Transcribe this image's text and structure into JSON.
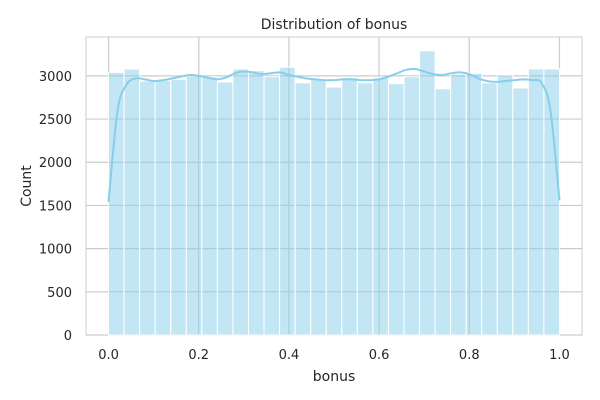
{
  "chart_data": {
    "type": "histogram",
    "title": "Distribution of bonus",
    "xlabel": "bonus",
    "ylabel": "Count",
    "xlim": [
      -0.05,
      1.05
    ],
    "ylim": [
      0,
      3450
    ],
    "xticks": [
      0.0,
      0.2,
      0.4,
      0.6,
      0.8,
      1.0
    ],
    "xtick_labels": [
      "0.0",
      "0.2",
      "0.4",
      "0.6",
      "0.8",
      "1.0"
    ],
    "yticks": [
      0,
      500,
      1000,
      1500,
      2000,
      2500,
      3000
    ],
    "ytick_labels": [
      "0",
      "500",
      "1000",
      "1500",
      "2000",
      "2500",
      "3000"
    ],
    "grid": true,
    "bar_color": "#87ceeb",
    "line_color": "#87ceeb",
    "bins": {
      "start": 0.0,
      "end": 1.0,
      "counts": [
        3040,
        3080,
        2940,
        2950,
        2960,
        3000,
        2990,
        2930,
        3080,
        3060,
        2990,
        3100,
        2920,
        2960,
        2870,
        2980,
        2920,
        2980,
        2910,
        2990,
        3290,
        2850,
        3020,
        3030,
        2920,
        3010,
        2860,
        3080,
        3080
      ]
    },
    "kde": {
      "x": [
        0.0,
        0.02,
        0.04,
        0.06,
        0.08,
        0.1,
        0.12,
        0.14,
        0.16,
        0.18,
        0.2,
        0.22,
        0.24,
        0.26,
        0.28,
        0.3,
        0.32,
        0.34,
        0.36,
        0.38,
        0.4,
        0.42,
        0.44,
        0.46,
        0.48,
        0.5,
        0.52,
        0.54,
        0.56,
        0.58,
        0.6,
        0.62,
        0.64,
        0.66,
        0.68,
        0.7,
        0.72,
        0.74,
        0.76,
        0.78,
        0.8,
        0.82,
        0.84,
        0.86,
        0.88,
        0.9,
        0.92,
        0.94,
        0.96,
        0.98,
        1.0
      ],
      "y": [
        1540,
        2600,
        2900,
        2970,
        2960,
        2940,
        2950,
        2970,
        2990,
        3010,
        3000,
        2980,
        2960,
        2980,
        3030,
        3050,
        3040,
        3020,
        3030,
        3040,
        3010,
        2990,
        2970,
        2960,
        2950,
        2950,
        2960,
        2960,
        2950,
        2950,
        2960,
        2990,
        3030,
        3070,
        3080,
        3050,
        3020,
        3010,
        3030,
        3040,
        3020,
        2970,
        2940,
        2930,
        2940,
        2950,
        2960,
        2950,
        2920,
        2600,
        1560
      ]
    }
  }
}
